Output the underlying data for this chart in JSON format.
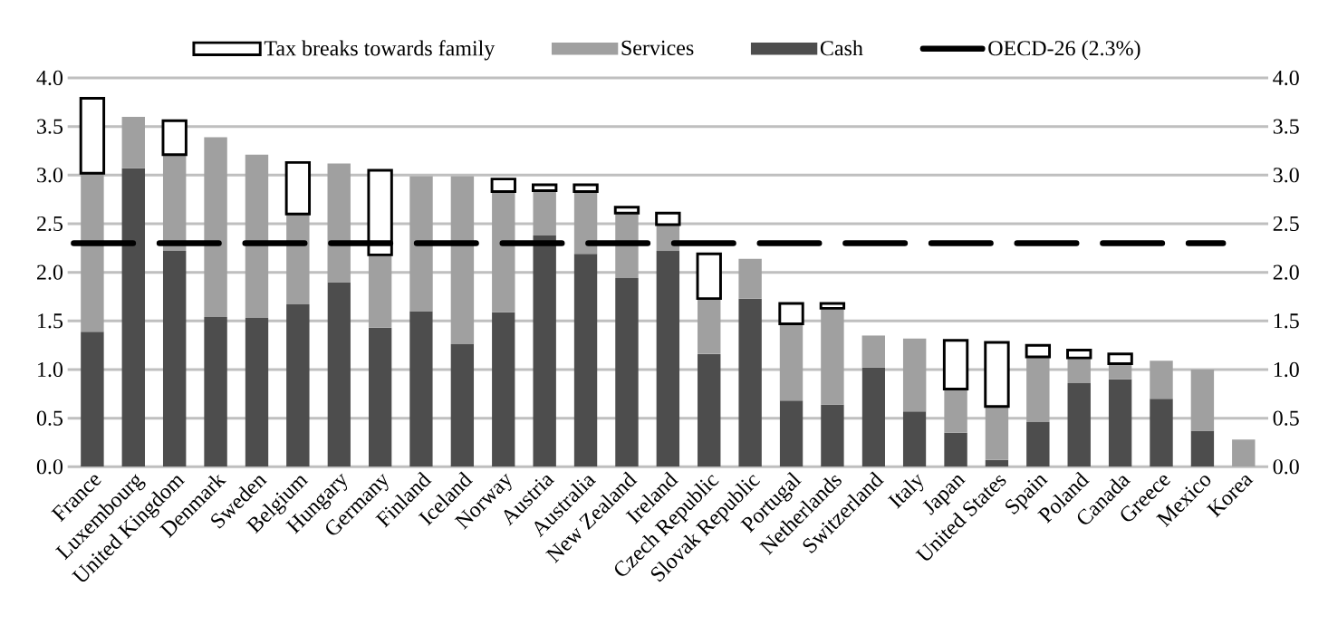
{
  "chart_data": {
    "type": "bar",
    "stacked": true,
    "categories": [
      "France",
      "Luxembourg",
      "United Kingdom",
      "Denmark",
      "Sweden",
      "Belgium",
      "Hungary",
      "Germany",
      "Finland",
      "Iceland",
      "Norway",
      "Austria",
      "Australia",
      "New Zealand",
      "Ireland",
      "Czech Republic",
      "Slovak Republic",
      "Portugal",
      "Netherlands",
      "Switzerland",
      "Italy",
      "Japan",
      "United States",
      "Spain",
      "Poland",
      "Canada",
      "Greece",
      "Mexico",
      "Korea"
    ],
    "series": [
      {
        "name": "Cash",
        "color": "#4d4d4d",
        "values": [
          1.39,
          3.07,
          2.22,
          1.54,
          1.53,
          1.67,
          1.9,
          1.43,
          1.6,
          1.26,
          1.59,
          2.38,
          2.19,
          1.94,
          2.22,
          1.16,
          1.73,
          0.68,
          0.64,
          1.02,
          0.57,
          0.35,
          0.07,
          0.46,
          0.86,
          0.9,
          0.7,
          0.37,
          0
        ]
      },
      {
        "name": "Services",
        "color": "#a0a0a0",
        "values": [
          1.63,
          0.53,
          0.99,
          1.85,
          1.68,
          0.93,
          1.22,
          0.75,
          1.39,
          1.73,
          1.24,
          0.46,
          0.64,
          0.67,
          0.27,
          0.57,
          0.41,
          0.79,
          0.99,
          0.33,
          0.75,
          0.45,
          0.55,
          0.67,
          0.26,
          0.16,
          0.39,
          0.63,
          0.28
        ]
      },
      {
        "name": "Tax breaks towards family",
        "color": "#ffffff",
        "values": [
          0.77,
          null,
          0.35,
          null,
          null,
          0.53,
          null,
          0.87,
          null,
          null,
          0.13,
          0.06,
          0.07,
          0.06,
          0.12,
          0.46,
          null,
          0.21,
          0.05,
          null,
          null,
          0.5,
          0.66,
          0.12,
          0.08,
          0.1,
          null,
          null,
          null
        ]
      }
    ],
    "ylim": [
      0,
      4
    ],
    "yticks": [
      {
        "value": 0,
        "label": "0.0"
      },
      {
        "value": 0.5,
        "label": "0.5"
      },
      {
        "value": 1,
        "label": "1.0"
      },
      {
        "value": 1.5,
        "label": "1.5"
      },
      {
        "value": 2,
        "label": "2.0"
      },
      {
        "value": 2.5,
        "label": "2.5"
      },
      {
        "value": 3,
        "label": "3.0"
      },
      {
        "value": 3.5,
        "label": "3.5"
      },
      {
        "value": 4,
        "label": "4.0"
      }
    ],
    "y2lim": [
      0,
      4
    ],
    "y2ticks": [
      {
        "value": 0,
        "label": "0.0"
      },
      {
        "value": 0.5,
        "label": "0.5"
      },
      {
        "value": 1,
        "label": "1.0"
      },
      {
        "value": 1.5,
        "label": "1.5"
      },
      {
        "value": 2,
        "label": "2.0"
      },
      {
        "value": 2.5,
        "label": "2.5"
      },
      {
        "value": 3,
        "label": "3.0"
      },
      {
        "value": 3.5,
        "label": "3.5"
      },
      {
        "value": 4,
        "label": "4.0"
      }
    ],
    "grid": "y",
    "legend": "top",
    "ref_lines": [
      {
        "axis": "y",
        "value": 2.3,
        "label": "OECD-26 (2.3%)",
        "color": "#000000",
        "line_style": "dashed"
      }
    ]
  }
}
